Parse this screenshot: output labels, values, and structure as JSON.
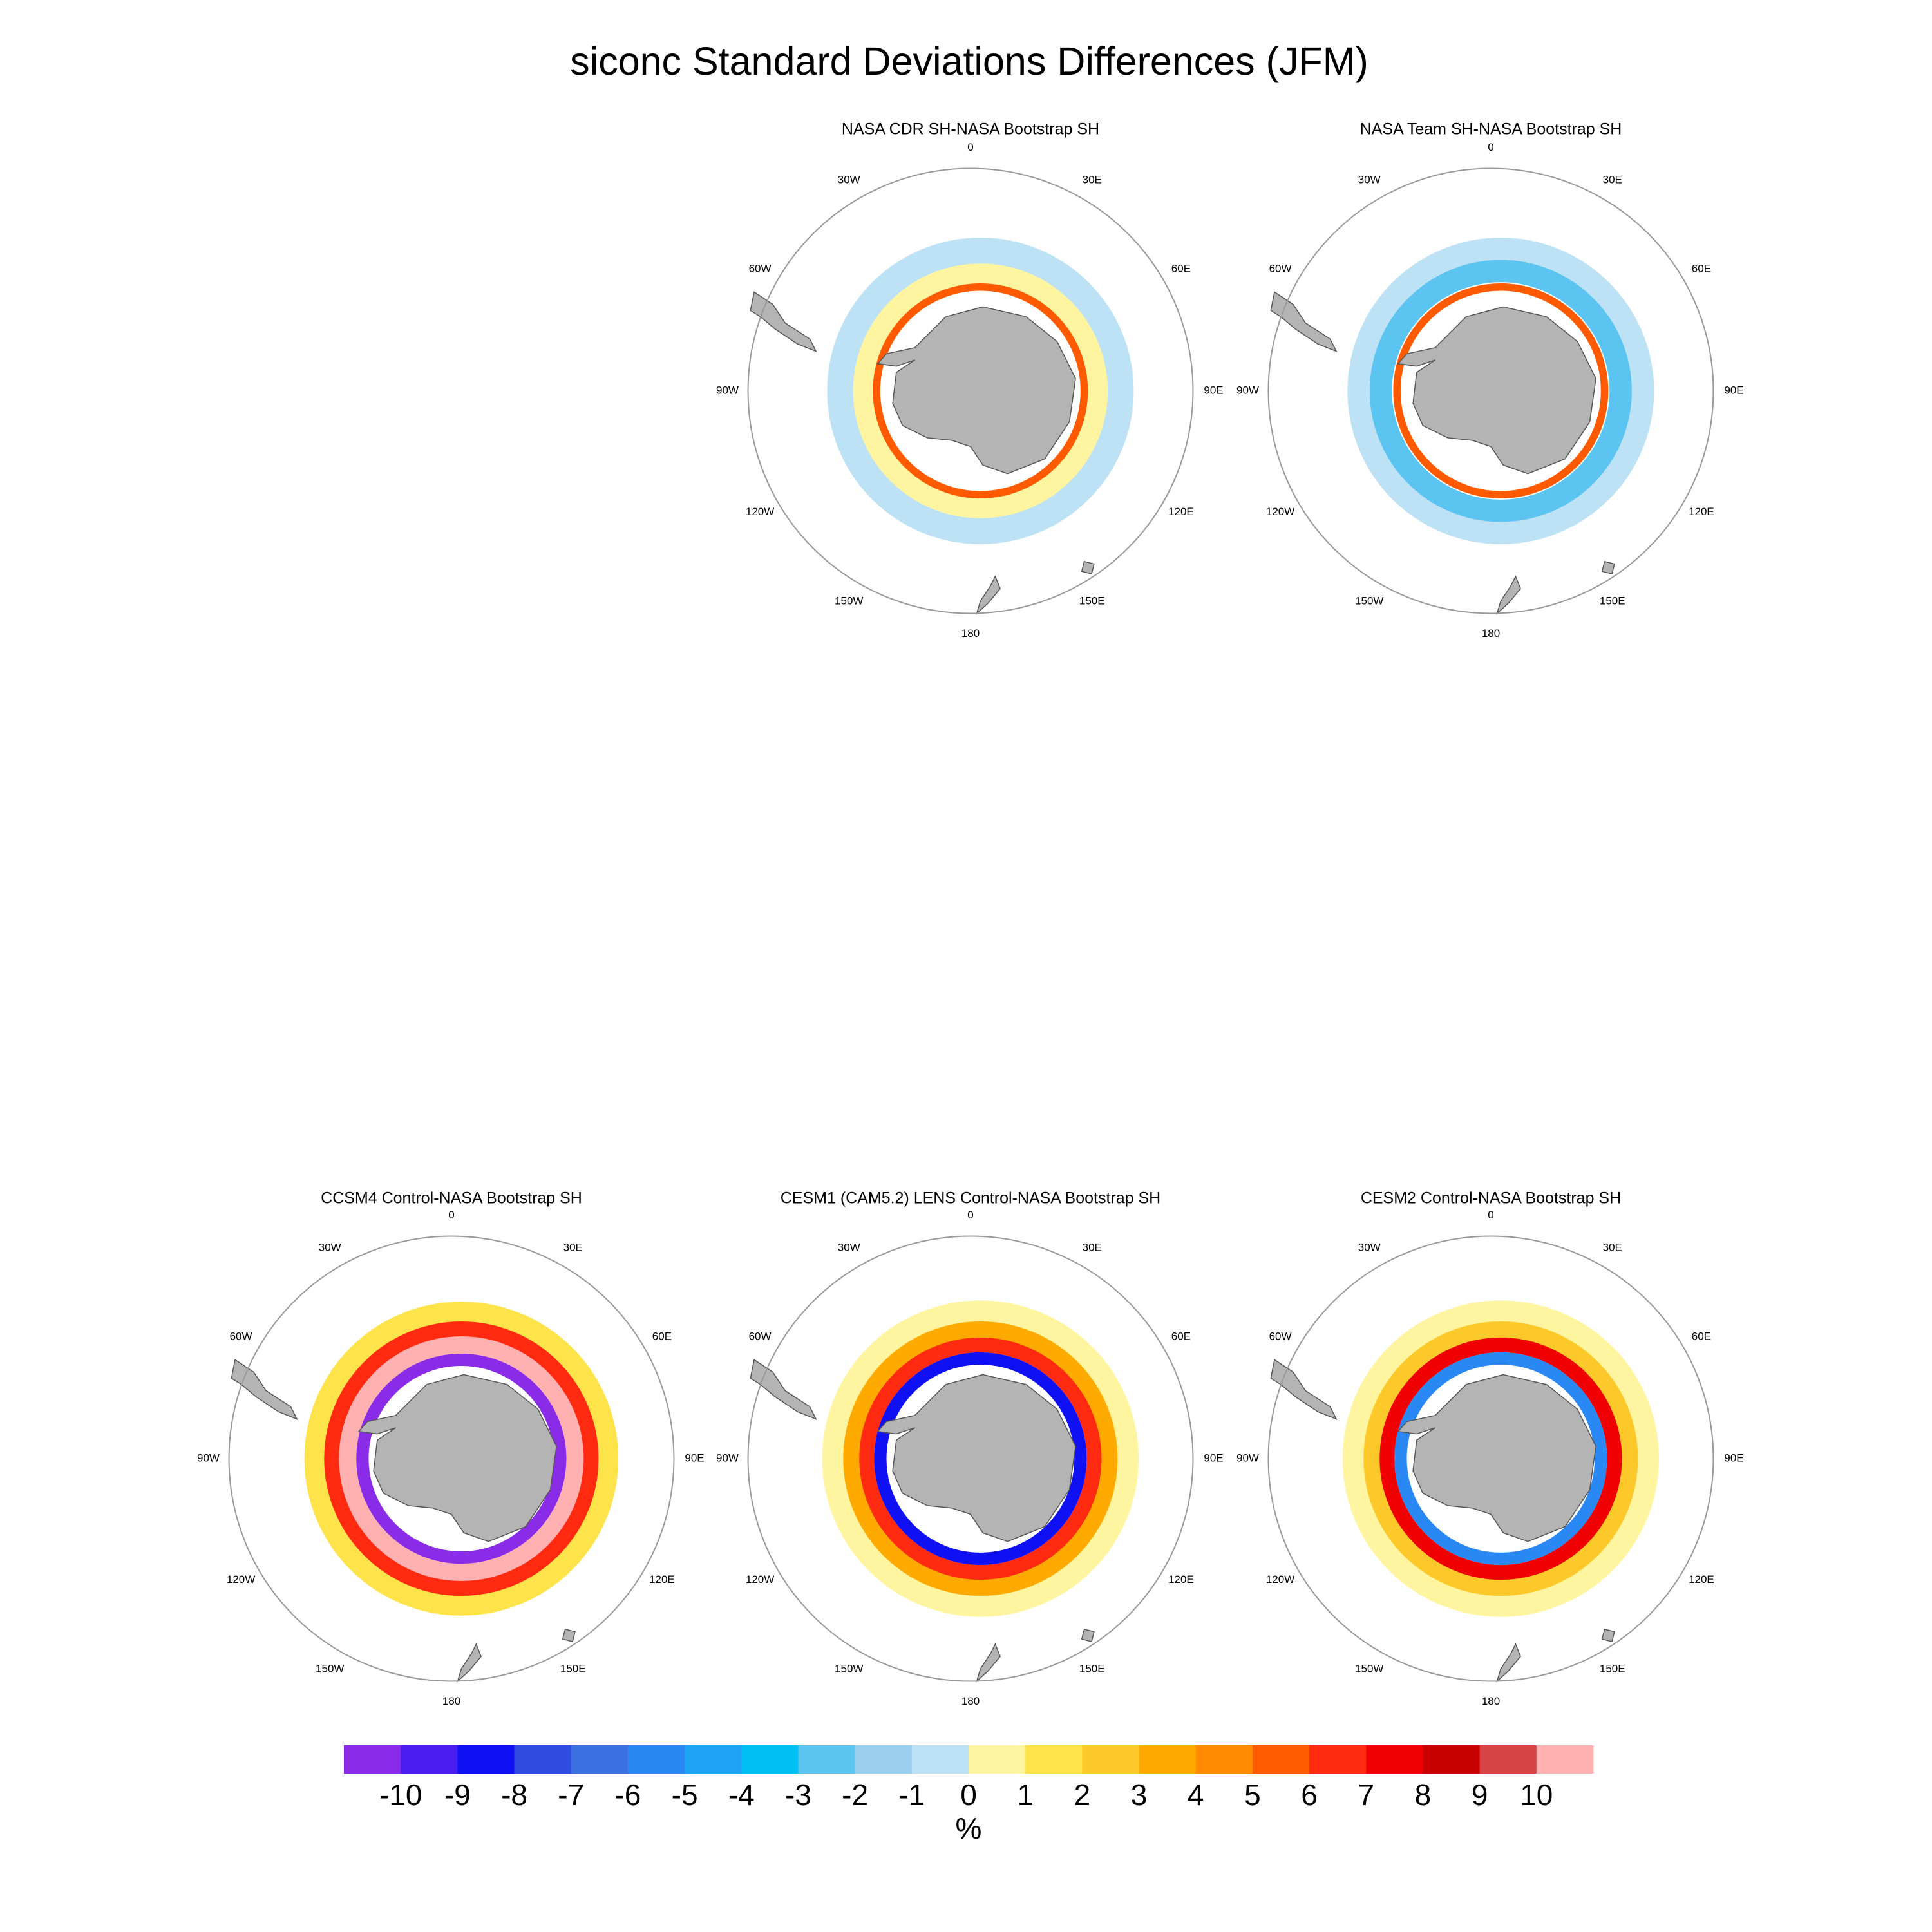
{
  "title": "siconc Standard Deviations Differences (JFM)",
  "panels": [
    {
      "title": "NASA CDR SH-NASA Bootstrap SH"
    },
    {
      "title": "NASA Team SH-NASA Bootstrap SH"
    },
    {
      "title": "CCSM4 Control-NASA Bootstrap SH"
    },
    {
      "title": "CESM1 (CAM5.2) LENS Control-NASA Bootstrap SH"
    },
    {
      "title": "CESM2 Control-NASA Bootstrap SH"
    }
  ],
  "lon_labels": [
    "0",
    "30E",
    "60E",
    "90E",
    "120E",
    "150E",
    "180",
    "150W",
    "120W",
    "90W",
    "60W",
    "30W"
  ],
  "colorbar": {
    "colors": [
      "#8a2be8",
      "#4a1cf0",
      "#1010f5",
      "#2f4de0",
      "#3c70e0",
      "#2a88f5",
      "#1ea4f5",
      "#00bff5",
      "#5cc4f0",
      "#9ad0ee",
      "#bde2f5",
      "#fff5a0",
      "#ffe34a",
      "#fcc82a",
      "#ffaa00",
      "#ff8a00",
      "#ff5a00",
      "#ff2a10",
      "#f00000",
      "#c80000",
      "#d94444",
      "#ffb0b0"
    ],
    "ticks": [
      -10,
      -9,
      -8,
      -7,
      -6,
      -5,
      -4,
      -3,
      -2,
      -1,
      0,
      1,
      2,
      3,
      4,
      5,
      6,
      7,
      8,
      9,
      10
    ],
    "unit": "%"
  }
}
